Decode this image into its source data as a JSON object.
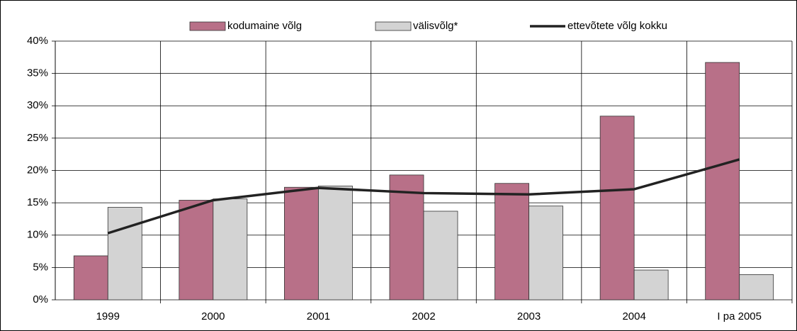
{
  "chart_data": {
    "type": "bar",
    "categories": [
      "1999",
      "2000",
      "2001",
      "2002",
      "2003",
      "2004",
      "I pa 2005"
    ],
    "series": [
      {
        "name": "kodumaine võlg",
        "type": "bar",
        "color": "#b87088",
        "values": [
          6.8,
          15.4,
          17.4,
          19.3,
          18.0,
          28.4,
          36.7
        ]
      },
      {
        "name": "välisvõlg*",
        "type": "bar",
        "color": "#d3d3d3",
        "values": [
          14.3,
          15.6,
          17.6,
          13.7,
          14.5,
          4.6,
          3.9
        ]
      },
      {
        "name": "ettevõtete võlg kokku",
        "type": "line",
        "color": "#222222",
        "values": [
          10.3,
          15.4,
          17.3,
          16.5,
          16.3,
          17.1,
          21.7
        ]
      }
    ],
    "ylim": [
      0,
      40
    ],
    "yticks": [
      {
        "value": 0,
        "label": "0%"
      },
      {
        "value": 5,
        "label": "5%"
      },
      {
        "value": 10,
        "label": "10%"
      },
      {
        "value": 15,
        "label": "15%"
      },
      {
        "value": 20,
        "label": "20%"
      },
      {
        "value": 25,
        "label": "25%"
      },
      {
        "value": 30,
        "label": "30%"
      },
      {
        "value": 35,
        "label": "35%"
      },
      {
        "value": 40,
        "label": "40%"
      }
    ],
    "grid": true,
    "legend": "top"
  }
}
